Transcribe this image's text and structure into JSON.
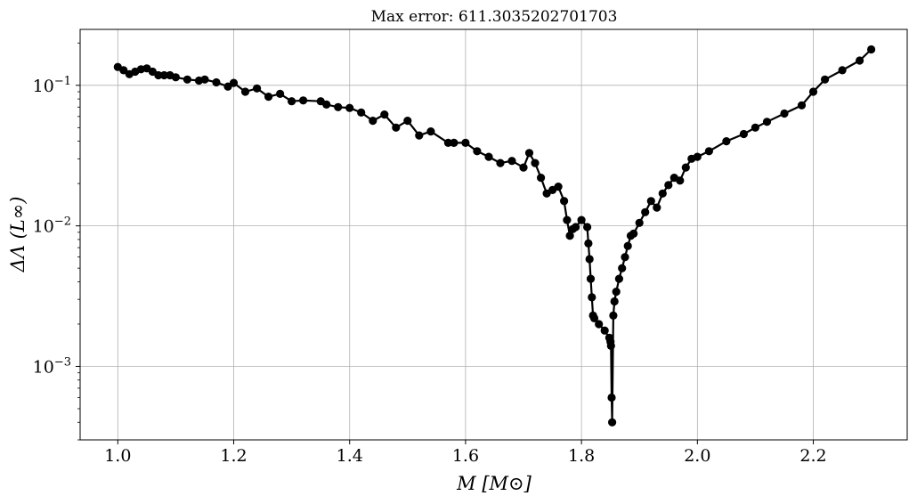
{
  "chart_data": {
    "type": "line",
    "title": "Max error: 611.3035202701703",
    "xlabel": "M [M⊙]",
    "ylabel": "ΔΛ (L∞)",
    "xlim": [
      0.935,
      2.362
    ],
    "ylim": [
      0.0003,
      0.25
    ],
    "yscale": "log",
    "grid": true,
    "x_ticks": [
      1.0,
      1.2,
      1.4,
      1.6,
      1.8,
      2.0,
      2.2
    ],
    "x_tick_labels": [
      "1.0",
      "1.2",
      "1.4",
      "1.6",
      "1.8",
      "2.0",
      "2.2"
    ],
    "y_ticks": [
      0.001,
      0.01,
      0.1
    ],
    "y_tick_labels": [
      "10−3",
      "10−2",
      "10−1"
    ],
    "series": [
      {
        "color": "#000000",
        "marker": "circle",
        "x": [
          1.0,
          1.01,
          1.02,
          1.03,
          1.04,
          1.05,
          1.06,
          1.07,
          1.08,
          1.09,
          1.1,
          1.12,
          1.14,
          1.15,
          1.17,
          1.19,
          1.2,
          1.22,
          1.24,
          1.26,
          1.28,
          1.3,
          1.32,
          1.35,
          1.36,
          1.38,
          1.4,
          1.42,
          1.44,
          1.46,
          1.48,
          1.5,
          1.52,
          1.54,
          1.57,
          1.58,
          1.6,
          1.62,
          1.64,
          1.66,
          1.68,
          1.7,
          1.71,
          1.72,
          1.73,
          1.74,
          1.75,
          1.76,
          1.77,
          1.775,
          1.78,
          1.785,
          1.79,
          1.8,
          1.81,
          1.812,
          1.814,
          1.816,
          1.818,
          1.82,
          1.822,
          1.83,
          1.84,
          1.848,
          1.85,
          1.851,
          1.852,
          1.853,
          1.855,
          1.857,
          1.86,
          1.865,
          1.87,
          1.875,
          1.88,
          1.885,
          1.89,
          1.9,
          1.91,
          1.92,
          1.93,
          1.94,
          1.95,
          1.96,
          1.97,
          1.98,
          1.99,
          2.0,
          2.02,
          2.05,
          2.08,
          2.1,
          2.12,
          2.15,
          2.18,
          2.2,
          2.22,
          2.25,
          2.28,
          2.3
        ],
        "y": [
          0.135,
          0.128,
          0.12,
          0.125,
          0.13,
          0.132,
          0.125,
          0.118,
          0.118,
          0.118,
          0.114,
          0.11,
          0.108,
          0.11,
          0.105,
          0.098,
          0.104,
          0.09,
          0.095,
          0.083,
          0.087,
          0.077,
          0.078,
          0.077,
          0.073,
          0.07,
          0.069,
          0.064,
          0.056,
          0.062,
          0.05,
          0.056,
          0.044,
          0.047,
          0.039,
          0.039,
          0.039,
          0.034,
          0.031,
          0.028,
          0.029,
          0.026,
          0.033,
          0.028,
          0.022,
          0.017,
          0.018,
          0.019,
          0.015,
          0.011,
          0.0085,
          0.0095,
          0.0098,
          0.011,
          0.0098,
          0.0075,
          0.0058,
          0.0042,
          0.0031,
          0.0023,
          0.0022,
          0.002,
          0.0018,
          0.0016,
          0.0015,
          0.0014,
          0.0006,
          0.0004,
          0.0023,
          0.0029,
          0.0034,
          0.0042,
          0.005,
          0.006,
          0.0072,
          0.0085,
          0.0088,
          0.0105,
          0.0125,
          0.015,
          0.0135,
          0.017,
          0.0195,
          0.022,
          0.021,
          0.026,
          0.03,
          0.031,
          0.034,
          0.04,
          0.045,
          0.05,
          0.055,
          0.063,
          0.072,
          0.09,
          0.11,
          0.128,
          0.15,
          0.18
        ]
      }
    ]
  }
}
